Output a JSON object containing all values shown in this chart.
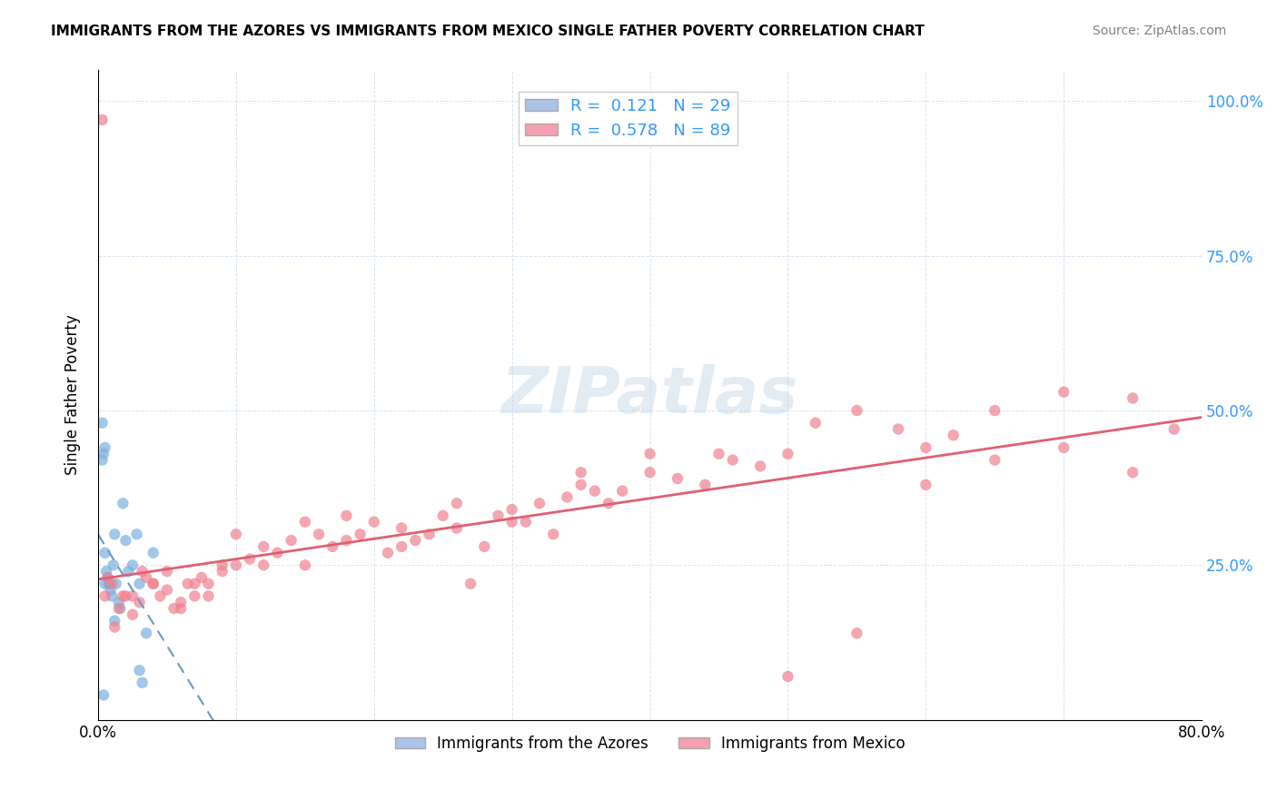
{
  "title": "IMMIGRANTS FROM THE AZORES VS IMMIGRANTS FROM MEXICO SINGLE FATHER POVERTY CORRELATION CHART",
  "source": "Source: ZipAtlas.com",
  "ylabel": "Single Father Poverty",
  "xlim": [
    0.0,
    0.8
  ],
  "ylim": [
    0.0,
    1.05
  ],
  "legend1_label": "R =  0.121   N = 29",
  "legend2_label": "R =  0.578   N = 89",
  "legend1_color": "#aac4e8",
  "legend2_color": "#f4a0b0",
  "series1_color": "#7ab0e0",
  "series2_color": "#f08090",
  "trendline1_color": "#6699cc",
  "trendline2_color": "#e06070",
  "watermark": "ZIPatlas",
  "watermark_color": "#c8d8e8",
  "azores_x": [
    0.003,
    0.004,
    0.005,
    0.005,
    0.006,
    0.007,
    0.008,
    0.009,
    0.01,
    0.011,
    0.012,
    0.013,
    0.015,
    0.016,
    0.018,
    0.02,
    0.022,
    0.025,
    0.028,
    0.03,
    0.03,
    0.032,
    0.035,
    0.04,
    0.005,
    0.003,
    0.004,
    0.008,
    0.012
  ],
  "azores_y": [
    0.42,
    0.43,
    0.22,
    0.27,
    0.24,
    0.23,
    0.22,
    0.21,
    0.2,
    0.25,
    0.3,
    0.22,
    0.19,
    0.18,
    0.35,
    0.29,
    0.24,
    0.25,
    0.3,
    0.22,
    0.08,
    0.06,
    0.14,
    0.27,
    0.44,
    0.48,
    0.04,
    0.22,
    0.16
  ],
  "mexico_x": [
    0.005,
    0.01,
    0.015,
    0.02,
    0.025,
    0.03,
    0.035,
    0.04,
    0.045,
    0.05,
    0.055,
    0.06,
    0.065,
    0.07,
    0.075,
    0.08,
    0.09,
    0.1,
    0.11,
    0.12,
    0.13,
    0.14,
    0.15,
    0.16,
    0.17,
    0.18,
    0.19,
    0.2,
    0.21,
    0.22,
    0.23,
    0.24,
    0.25,
    0.26,
    0.27,
    0.28,
    0.29,
    0.3,
    0.31,
    0.32,
    0.33,
    0.34,
    0.35,
    0.36,
    0.37,
    0.38,
    0.4,
    0.42,
    0.44,
    0.46,
    0.48,
    0.5,
    0.52,
    0.55,
    0.58,
    0.6,
    0.62,
    0.65,
    0.7,
    0.75,
    0.003,
    0.007,
    0.012,
    0.018,
    0.025,
    0.032,
    0.04,
    0.05,
    0.06,
    0.07,
    0.08,
    0.09,
    0.1,
    0.12,
    0.15,
    0.18,
    0.22,
    0.26,
    0.3,
    0.35,
    0.4,
    0.45,
    0.5,
    0.55,
    0.6,
    0.65,
    0.7,
    0.75,
    0.78
  ],
  "mexico_y": [
    0.2,
    0.22,
    0.18,
    0.2,
    0.17,
    0.19,
    0.23,
    0.22,
    0.2,
    0.21,
    0.18,
    0.19,
    0.22,
    0.2,
    0.23,
    0.22,
    0.24,
    0.25,
    0.26,
    0.28,
    0.27,
    0.29,
    0.25,
    0.3,
    0.28,
    0.29,
    0.3,
    0.32,
    0.27,
    0.31,
    0.29,
    0.3,
    0.33,
    0.31,
    0.22,
    0.28,
    0.33,
    0.34,
    0.32,
    0.35,
    0.3,
    0.36,
    0.38,
    0.37,
    0.35,
    0.37,
    0.4,
    0.39,
    0.38,
    0.42,
    0.41,
    0.43,
    0.48,
    0.5,
    0.47,
    0.44,
    0.46,
    0.5,
    0.53,
    0.52,
    0.97,
    0.23,
    0.15,
    0.2,
    0.2,
    0.24,
    0.22,
    0.24,
    0.18,
    0.22,
    0.2,
    0.25,
    0.3,
    0.25,
    0.32,
    0.33,
    0.28,
    0.35,
    0.32,
    0.4,
    0.43,
    0.43,
    0.07,
    0.14,
    0.38,
    0.42,
    0.44,
    0.4,
    0.47
  ],
  "bottom_label1": "Immigrants from the Azores",
  "bottom_label2": "Immigrants from Mexico"
}
